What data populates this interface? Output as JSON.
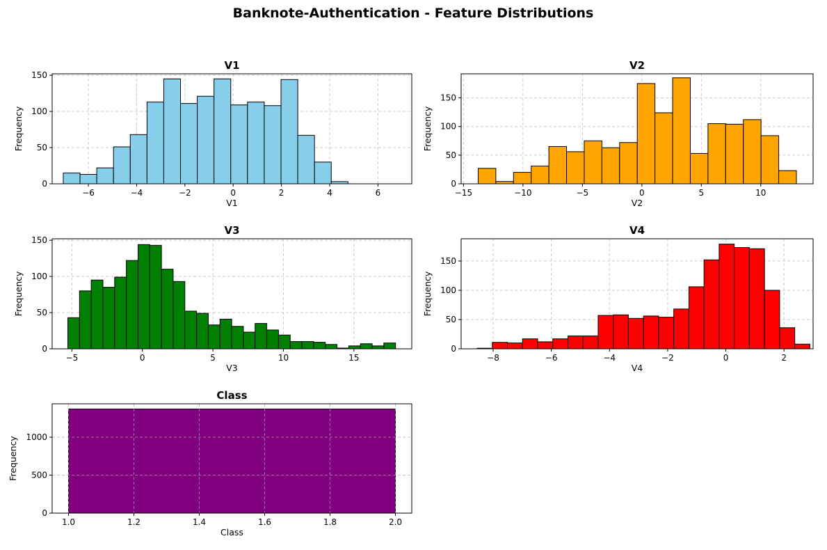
{
  "figure": {
    "title": "Banknote-Authentication - Feature Distributions"
  },
  "chart_data": [
    {
      "id": "v1",
      "type": "bar",
      "title": "V1",
      "xlabel": "V1",
      "ylabel": "Frequency",
      "color": "#87ceeb",
      "edge_color": "#000000",
      "xlim": [
        -7.5,
        7.4
      ],
      "ylim": [
        0,
        152
      ],
      "xticks": [
        -6,
        -4,
        -2,
        0,
        2,
        4,
        6
      ],
      "yticks": [
        0,
        50,
        100,
        150
      ],
      "grid": true,
      "bin_start": -7.04,
      "bin_width": 0.694,
      "values": [
        15,
        13,
        22,
        51,
        68,
        113,
        145,
        111,
        121,
        145,
        109,
        113,
        108,
        144,
        67,
        30,
        3
      ]
    },
    {
      "id": "v2",
      "type": "bar",
      "title": "V2",
      "xlabel": "V2",
      "ylabel": "Frequency",
      "color": "#ffa500",
      "edge_color": "#000000",
      "xlim": [
        -15.2,
        14.4
      ],
      "ylim": [
        0,
        192
      ],
      "xticks": [
        -15,
        -10,
        -5,
        0,
        5,
        10
      ],
      "yticks": [
        0,
        50,
        100,
        150
      ],
      "grid": true,
      "bin_start": -13.77,
      "bin_width": 1.487,
      "values": [
        27,
        4,
        20,
        31,
        65,
        56,
        75,
        63,
        72,
        175,
        124,
        185,
        53,
        105,
        104,
        112,
        84,
        23
      ]
    },
    {
      "id": "v3",
      "type": "bar",
      "title": "V3",
      "xlabel": "V3",
      "ylabel": "Frequency",
      "color": "#008000",
      "edge_color": "#000000",
      "xlim": [
        -6.4,
        19.1
      ],
      "ylim": [
        0,
        152
      ],
      "xticks": [
        -5,
        0,
        5,
        10,
        15
      ],
      "yticks": [
        0,
        50,
        100,
        150
      ],
      "grid": true,
      "bin_start": -5.29,
      "bin_width": 0.83,
      "values": [
        43,
        80,
        95,
        85,
        99,
        122,
        144,
        143,
        110,
        93,
        52,
        49,
        33,
        41,
        31,
        23,
        35,
        26,
        19,
        10,
        10,
        9,
        6,
        1,
        4,
        7,
        4,
        8
      ]
    },
    {
      "id": "v4",
      "type": "bar",
      "title": "V4",
      "xlabel": "V4",
      "ylabel": "Frequency",
      "color": "#ff0000",
      "edge_color": "#000000",
      "xlim": [
        -9.1,
        3.0
      ],
      "ylim": [
        0,
        188
      ],
      "xticks": [
        -8,
        -6,
        -4,
        -2,
        0,
        2
      ],
      "yticks": [
        0,
        50,
        100,
        150
      ],
      "grid": true,
      "bin_start": -8.55,
      "bin_width": 0.52,
      "values": [
        1,
        11,
        10,
        17,
        12,
        17,
        22,
        22,
        57,
        58,
        52,
        56,
        54,
        68,
        106,
        152,
        179,
        173,
        171,
        100,
        36,
        8
      ]
    },
    {
      "id": "class",
      "type": "bar",
      "title": "Class",
      "xlabel": "Class",
      "ylabel": "Frequency",
      "color": "#800080",
      "edge_color": "#000000",
      "xlim": [
        0.95,
        2.05
      ],
      "ylim": [
        0,
        1440
      ],
      "xticks": [
        "1.0",
        "1.2",
        "1.4",
        "1.6",
        "1.8",
        "2.0"
      ],
      "yticks": [
        0,
        500,
        1000
      ],
      "grid": true,
      "bin_start": 1.0,
      "bin_width": 1.0,
      "values": [
        1372
      ]
    }
  ]
}
